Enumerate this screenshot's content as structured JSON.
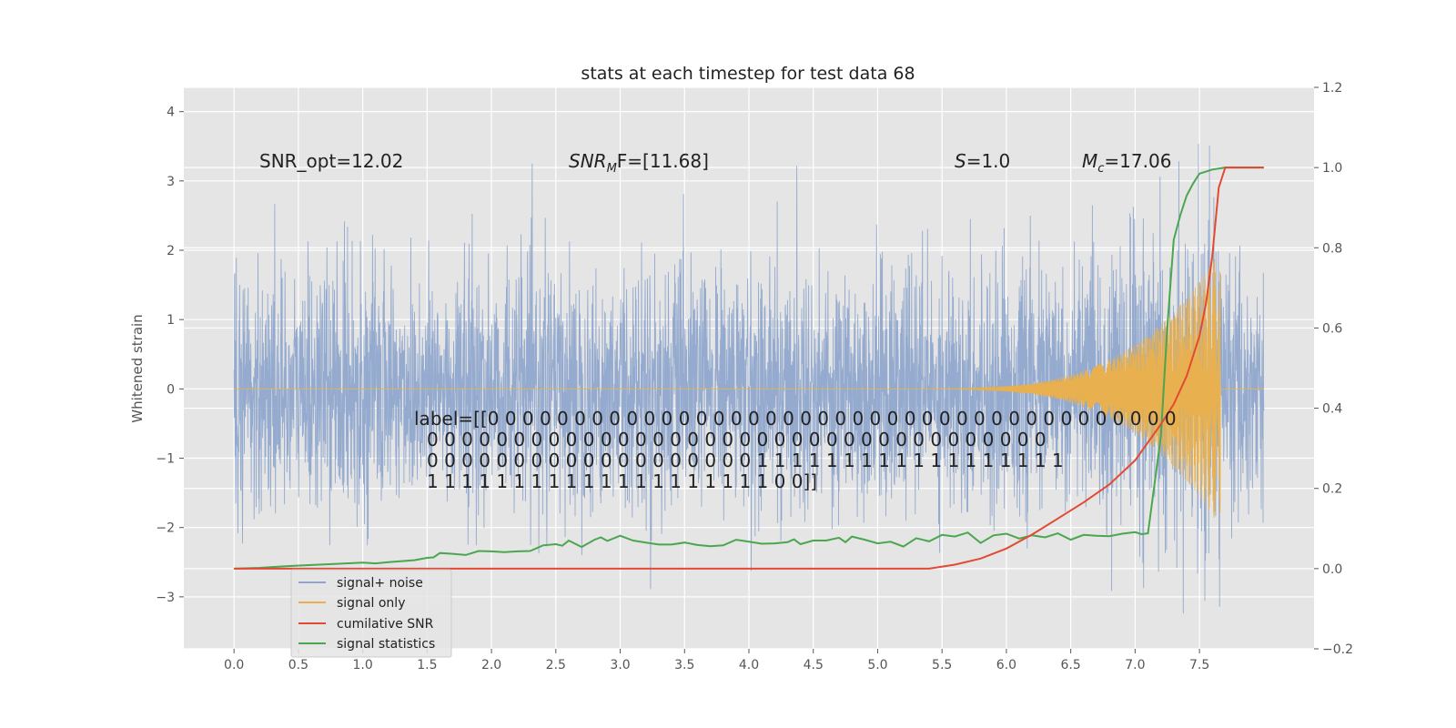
{
  "chart_data": {
    "type": "line",
    "title": "stats at each timestep for test data 68",
    "ylabel": "Whitened strain",
    "xlim": [
      -0.39,
      8.39
    ],
    "ylim_left": [
      -3.75,
      4.35
    ],
    "ylim_right": [
      -0.2,
      1.2
    ],
    "x_ticks": [
      "0.0",
      "0.5",
      "1.0",
      "1.5",
      "2.0",
      "2.5",
      "3.0",
      "3.5",
      "4.0",
      "4.5",
      "5.0",
      "5.5",
      "6.0",
      "6.5",
      "7.0",
      "7.5"
    ],
    "y_ticks_left": [
      "−3",
      "−2",
      "−1",
      "0",
      "1",
      "2",
      "3",
      "4"
    ],
    "y_ticks_right": [
      "−0.2",
      "0.0",
      "0.2",
      "0.4",
      "0.6",
      "0.8",
      "1.0",
      "1.2"
    ],
    "grid": true,
    "colors": {
      "signal_noise": "#8fa6cc",
      "signal_only": "#e8b04e",
      "cumulative_snr": "#e24a33",
      "signal_statistics": "#4aa64f",
      "axes_bg": "#e5e5e5"
    },
    "annotations": {
      "snr_opt": "SNR_opt=12.02",
      "snr_mf": "SNR",
      "snr_mf_sub": "M",
      "snr_mf_rest": "F=[11.68]",
      "s_val": "S",
      "s_rest": "=1.0",
      "mc": "M",
      "mc_sub": "c",
      "mc_rest": "=17.06",
      "label_lines": [
        "label=[[0 0 0 0 0 0 0 0 0 0 0 0 0 0 0 0 0 0 0 0 0 0 0 0 0 0 0 0 0 0 0 0 0 0 0 0 0 0 0 0",
        "0 0 0 0 0 0 0 0 0 0 0 0 0 0 0 0 0 0 0 0 0 0 0 0 0 0 0 0 0 0 0 0 0 0 0 0",
        "0 0 0 0 0 0 0 0 0 0 0 0 0 0 0 0 0 0 0 1 1 1 1 1 1 1 1 1 1 1 1 1 1 1 1 1 1",
        "1 1 1 1 1 1 1 1 1 1 1 1 1 1 1 1 1 1 1 1 0 0]]"
      ]
    },
    "series": [
      {
        "name": "signal+ noise",
        "axis": "left",
        "duration": 8.0,
        "amplitude": 1.0
      },
      {
        "name": "signal only",
        "axis": "left",
        "chirp_start": 5.0,
        "merger": 7.66,
        "peak": 2.0
      },
      {
        "name": "cumilative SNR",
        "axis": "right",
        "x": [
          0.0,
          5.4,
          5.6,
          5.8,
          6.0,
          6.2,
          6.4,
          6.6,
          6.8,
          7.0,
          7.2,
          7.3,
          7.4,
          7.5,
          7.55,
          7.6,
          7.65,
          7.7,
          8.0
        ],
        "y": [
          0.0,
          0.0,
          0.01,
          0.025,
          0.05,
          0.085,
          0.125,
          0.165,
          0.21,
          0.27,
          0.36,
          0.41,
          0.48,
          0.58,
          0.66,
          0.78,
          0.95,
          1.0,
          1.0
        ]
      },
      {
        "name": "signal statistics",
        "axis": "right",
        "x": [
          0.0,
          0.2,
          0.4,
          0.6,
          0.8,
          1.0,
          1.1,
          1.2,
          1.4,
          1.5,
          1.55,
          1.6,
          1.7,
          1.8,
          1.9,
          2.0,
          2.1,
          2.2,
          2.3,
          2.4,
          2.5,
          2.55,
          2.6,
          2.7,
          2.8,
          2.85,
          2.9,
          3.0,
          3.1,
          3.2,
          3.3,
          3.4,
          3.5,
          3.6,
          3.7,
          3.8,
          3.9,
          4.0,
          4.1,
          4.2,
          4.3,
          4.35,
          4.4,
          4.5,
          4.6,
          4.7,
          4.75,
          4.8,
          4.9,
          5.0,
          5.1,
          5.2,
          5.3,
          5.4,
          5.5,
          5.6,
          5.7,
          5.8,
          5.9,
          6.0,
          6.1,
          6.2,
          6.3,
          6.4,
          6.5,
          6.6,
          6.7,
          6.8,
          6.9,
          7.0,
          7.05,
          7.1,
          7.2,
          7.25,
          7.3,
          7.35,
          7.4,
          7.45,
          7.5,
          7.55,
          7.6,
          7.7,
          7.8,
          8.0
        ],
        "y": [
          0.0,
          0.002,
          0.006,
          0.009,
          0.012,
          0.015,
          0.013,
          0.016,
          0.021,
          0.027,
          0.028,
          0.039,
          0.037,
          0.034,
          0.044,
          0.043,
          0.041,
          0.043,
          0.044,
          0.058,
          0.061,
          0.057,
          0.07,
          0.054,
          0.072,
          0.078,
          0.069,
          0.082,
          0.07,
          0.065,
          0.06,
          0.06,
          0.065,
          0.059,
          0.056,
          0.058,
          0.072,
          0.067,
          0.062,
          0.063,
          0.066,
          0.073,
          0.061,
          0.07,
          0.07,
          0.077,
          0.066,
          0.08,
          0.072,
          0.063,
          0.067,
          0.055,
          0.076,
          0.068,
          0.084,
          0.08,
          0.09,
          0.064,
          0.083,
          0.087,
          0.075,
          0.083,
          0.078,
          0.088,
          0.072,
          0.084,
          0.082,
          0.081,
          0.087,
          0.091,
          0.086,
          0.088,
          0.33,
          0.6,
          0.82,
          0.88,
          0.93,
          0.96,
          0.985,
          0.99,
          0.995,
          1.0,
          1.0,
          1.0
        ]
      }
    ]
  }
}
